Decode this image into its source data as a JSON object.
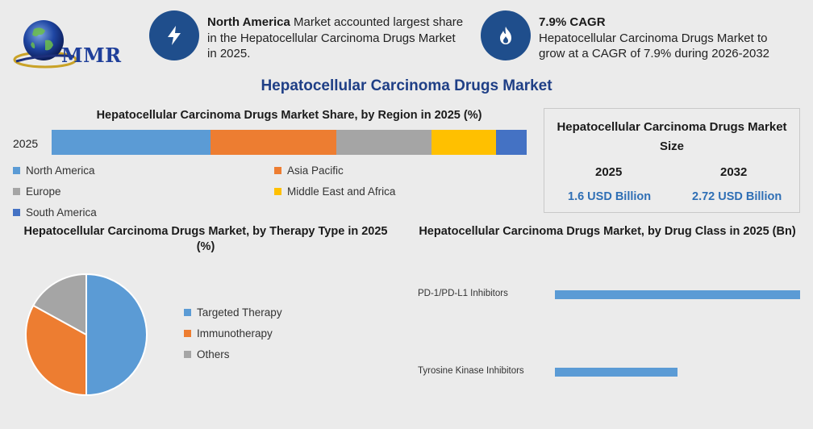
{
  "header": {
    "logo_text": "MMR",
    "highlight_1": {
      "icon": "lightning-bolt-icon",
      "bold": "North America",
      "text": " Market accounted largest share in the Hepatocellular Carcinoma Drugs Market in 2025."
    },
    "highlight_2": {
      "icon": "flame-icon",
      "bold": "7.9% CAGR",
      "text": "Hepatocellular Carcinoma Drugs Market to grow at a CAGR of 7.9% during 2026-2032"
    },
    "title": "Hepatocellular Carcinoma Drugs Market"
  },
  "colors": {
    "accent": "#1f4e8c",
    "title": "#1f3f86",
    "north_america": "#5b9bd5",
    "asia_pacific": "#ed7d31",
    "europe": "#a5a5a5",
    "mea": "#ffc000",
    "south_america": "#4472c4"
  },
  "market_size": {
    "title": "Hepatocellular Carcinoma Drugs Market Size",
    "year_1": "2025",
    "value_1": "1.6 USD Billion",
    "year_2": "2032",
    "value_2": "2.72 USD Billion"
  },
  "chart_data": [
    {
      "type": "bar",
      "orientation": "horizontal-stacked",
      "title": "Hepatocellular Carcinoma Drugs Market Share, by Region in 2025 (%)",
      "categories": [
        "2025"
      ],
      "series": [
        {
          "name": "North America",
          "values": [
            33.5
          ],
          "color": "#5b9bd5"
        },
        {
          "name": "Asia Pacific",
          "values": [
            26.5
          ],
          "color": "#ed7d31"
        },
        {
          "name": "Europe",
          "values": [
            20
          ],
          "color": "#a5a5a5"
        },
        {
          "name": "Middle East and Africa",
          "values": [
            13.5
          ],
          "color": "#ffc000"
        },
        {
          "name": "South America",
          "values": [
            6.5
          ],
          "color": "#4472c4"
        }
      ],
      "legend": "bottom"
    },
    {
      "type": "pie",
      "title": "Hepatocellular Carcinoma Drugs Market, by Therapy Type in 2025 (%)",
      "categories": [
        "Targeted Therapy",
        "Immunotherapy",
        "Others"
      ],
      "values": [
        50,
        33,
        17
      ],
      "colors": [
        "#5b9bd5",
        "#ed7d31",
        "#a5a5a5"
      ],
      "legend": "right"
    },
    {
      "type": "bar",
      "orientation": "horizontal",
      "title": "Hepatocellular Carcinoma Drugs Market, by Drug Class in 2025 (Bn)",
      "categories": [
        "PD-1/PD-L1 Inhibitors",
        "Tyrosine Kinase Inhibitors"
      ],
      "values": [
        1.0,
        0.5
      ],
      "xlim": [
        0,
        1.0
      ],
      "color": "#5b9bd5"
    }
  ]
}
